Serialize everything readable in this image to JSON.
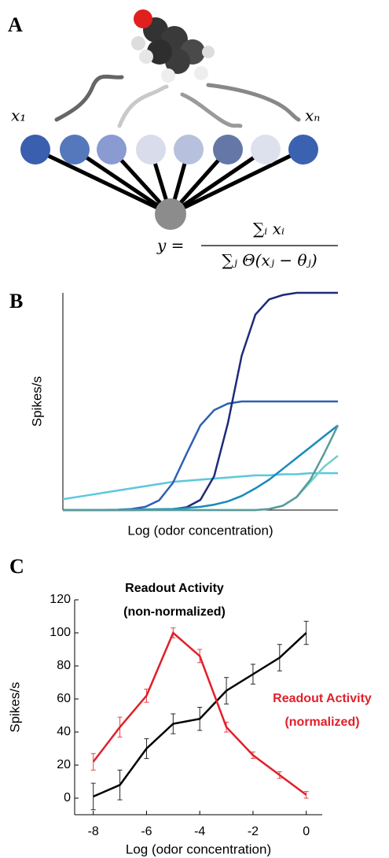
{
  "diagram": {
    "panel_label": "A",
    "inputs": [
      "x₁",
      "xₙ"
    ],
    "formula_lhs": "y =",
    "numerator": "∑ᵢ xᵢ",
    "denominator": "∑ⱼ Θ(xⱼ − θⱼ)"
  },
  "chart_data": [
    {
      "type": "line",
      "panel_label": "B",
      "xlabel": "Log (odor concentration)",
      "ylabel": "Spikes/s",
      "xlim": [
        0,
        20
      ],
      "ylim": [
        0,
        100
      ],
      "x": [
        0,
        1,
        2,
        3,
        4,
        5,
        6,
        7,
        8,
        9,
        10,
        11,
        12,
        13,
        14,
        15,
        16,
        17,
        18,
        19,
        20
      ],
      "series": [
        {
          "color": "#5bc8dc",
          "values": [
            5,
            6,
            7,
            8,
            9,
            10,
            11,
            12,
            13,
            13.5,
            14,
            14.5,
            15,
            15.5,
            16,
            16,
            16.5,
            16.5,
            17,
            17,
            17
          ]
        },
        {
          "color": "#2f5fb3",
          "values": [
            0,
            0,
            0,
            0.1,
            0.2,
            0.5,
            1.5,
            4.5,
            12.5,
            26,
            39,
            46,
            49,
            50,
            50,
            50,
            50,
            50,
            50,
            50,
            50
          ]
        },
        {
          "color": "#1f2a7a",
          "values": [
            0,
            0,
            0,
            0,
            0,
            0,
            0.1,
            0.2,
            0.4,
            1.3,
            4.7,
            15.6,
            40,
            71,
            90,
            97,
            99,
            100,
            100,
            100,
            100
          ]
        },
        {
          "color": "#1a8ab8",
          "values": [
            0,
            0,
            0,
            0,
            0.1,
            0.2,
            0.3,
            0.4,
            0.5,
            1,
            1.5,
            2.5,
            4,
            6.5,
            10,
            14,
            19,
            24,
            29,
            34,
            39
          ]
        },
        {
          "color": "#6fd0cc",
          "values": [
            0,
            0,
            0,
            0,
            0,
            0,
            0,
            0,
            0,
            0,
            0,
            0,
            0,
            0,
            0,
            0.5,
            2,
            6,
            13,
            20,
            25
          ]
        },
        {
          "color": "#5a9a9a",
          "values": [
            0,
            0,
            0,
            0,
            0,
            0,
            0,
            0,
            0,
            0,
            0,
            0,
            0,
            0,
            0,
            0.5,
            2,
            6,
            14,
            26,
            39
          ]
        }
      ]
    },
    {
      "type": "line",
      "panel_label": "C",
      "xlabel": "Log (odor concentration)",
      "ylabel": "Spikes/s",
      "xlim": [
        -8.7,
        0.6
      ],
      "ylim": [
        -10,
        120
      ],
      "xticks": [
        -8,
        -6,
        -4,
        -2,
        0
      ],
      "yticks": [
        0,
        20,
        40,
        60,
        80,
        100,
        120
      ],
      "x": [
        -8,
        -7,
        -6,
        -5,
        -4,
        -3,
        -2,
        -1,
        0
      ],
      "series": [
        {
          "label_lines": [
            "Readout Activity",
            "(non-normalized)"
          ],
          "color": "#000000",
          "values": [
            1,
            8,
            30,
            45,
            48,
            65,
            75,
            85,
            100
          ],
          "errors": [
            8,
            9,
            6,
            6,
            7,
            8,
            6,
            8,
            7
          ]
        },
        {
          "label_lines": [
            "Readout Activity",
            "(normalized)"
          ],
          "color": "#e0202a",
          "values": [
            22,
            43,
            62,
            100,
            86,
            43,
            26,
            14,
            2
          ],
          "errors": [
            5,
            6,
            4,
            3,
            4,
            3,
            2,
            2,
            2
          ]
        }
      ]
    }
  ]
}
